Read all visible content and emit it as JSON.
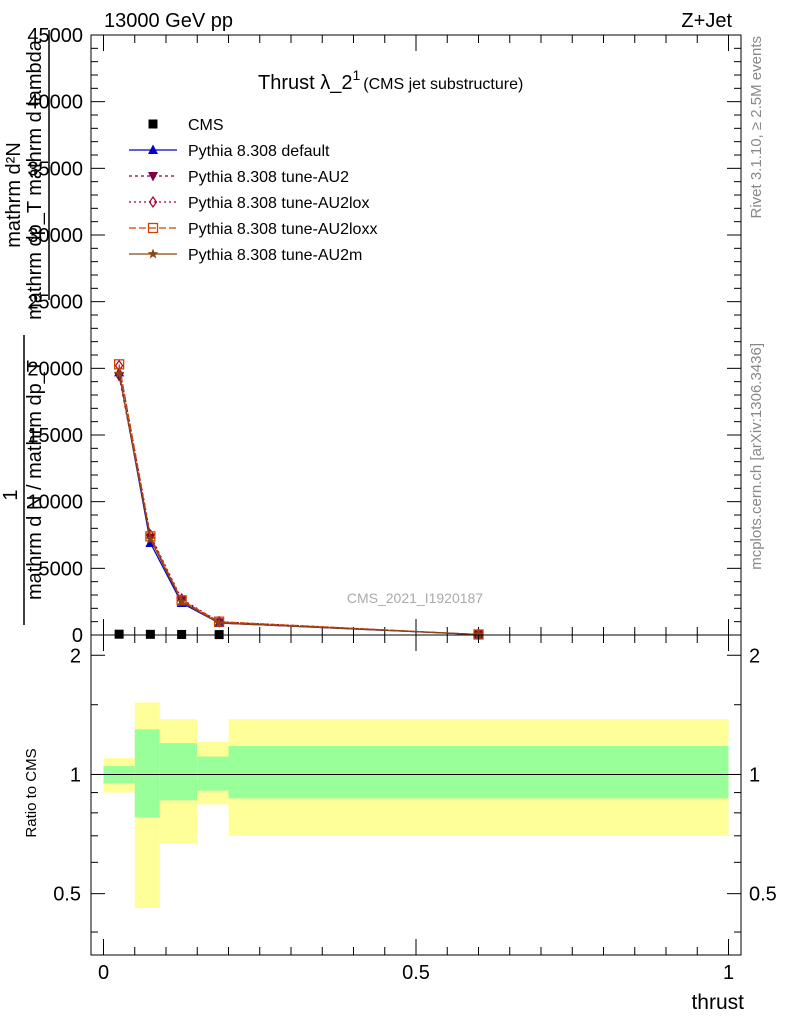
{
  "header": {
    "energy_label": "13000 GeV pp",
    "process_label": "Z+Jet"
  },
  "side_text": {
    "rivet": "Rivet 3.1.10, ≥ 2.5M events",
    "mcplots": "mcplots.cern.ch [arXiv:1306.3436]"
  },
  "watermark": "CMS_2021_I1920187",
  "title": {
    "main": "Thrust λ_2",
    "superscript": "1",
    "suffix": "(CMS jet substructure)"
  },
  "ylabel_main": {
    "numerator_lines": [
      "mathrm d²N",
      "mathrm dp_T mathrm d lambda"
    ],
    "prefix": "1",
    "denominator": "mathrm d N / mathrm dp_T"
  },
  "ylabel_ratio": "Ratio to CMS",
  "xlabel": "thrust",
  "colors": {
    "cms": "#000000",
    "default": "#0000cc",
    "au2": "#800040",
    "au2lox": "#a0002a",
    "au2loxx": "#cc4400",
    "au2m": "#8b4513",
    "band_inner": "#99ff99",
    "band_outer": "#ffff99"
  },
  "chart_data": [
    {
      "type": "line",
      "panel": "main",
      "xlim": [
        -0.02,
        1.02
      ],
      "ylim": [
        0,
        45000
      ],
      "x_ticks": [
        0,
        0.5,
        1
      ],
      "y_ticks": [
        0,
        5000,
        10000,
        15000,
        20000,
        25000,
        30000,
        35000,
        40000,
        45000
      ],
      "y_tick_labels": [
        "0",
        "5000",
        "10000",
        "15000",
        "20000",
        "25000",
        "30000",
        "35000",
        "40000",
        "45000"
      ],
      "grid": false,
      "legend_position": "top-left",
      "series": [
        {
          "name": "CMS",
          "style": "cms",
          "marker": "square",
          "x": [
            0.025,
            0.075,
            0.125,
            0.185,
            0.6
          ],
          "y": [
            60,
            50,
            40,
            30,
            5
          ]
        },
        {
          "name": "Pythia 8.308 default",
          "style": "default",
          "marker": "triangle-up",
          "dash": "",
          "x": [
            0.025,
            0.075,
            0.125,
            0.185,
            0.6
          ],
          "y": [
            19700,
            6900,
            2400,
            900,
            40
          ]
        },
        {
          "name": "Pythia 8.308 tune-AU2",
          "style": "au2",
          "marker": "triangle-down",
          "dash": "3,3",
          "x": [
            0.025,
            0.075,
            0.125,
            0.185,
            0.6
          ],
          "y": [
            19400,
            7300,
            2600,
            950,
            40
          ]
        },
        {
          "name": "Pythia 8.308 tune-AU2lox",
          "style": "au2lox",
          "marker": "diamond-open",
          "dash": "2,3",
          "x": [
            0.025,
            0.075,
            0.125,
            0.185,
            0.6
          ],
          "y": [
            20200,
            7500,
            2700,
            1000,
            40
          ]
        },
        {
          "name": "Pythia 8.308 tune-AU2loxx",
          "style": "au2loxx",
          "marker": "square-open",
          "dash": "7,3",
          "x": [
            0.025,
            0.075,
            0.125,
            0.185,
            0.6
          ],
          "y": [
            20300,
            7400,
            2600,
            1000,
            40
          ]
        },
        {
          "name": "Pythia 8.308 tune-AU2m",
          "style": "au2m",
          "marker": "star",
          "dash": "",
          "x": [
            0.025,
            0.075,
            0.125,
            0.185,
            0.6
          ],
          "y": [
            19600,
            7200,
            2500,
            900,
            40
          ]
        }
      ]
    },
    {
      "type": "area",
      "panel": "ratio",
      "xlim": [
        -0.02,
        1.02
      ],
      "ylim": [
        0.35,
        2.25
      ],
      "x_ticks": [
        0,
        0.5,
        1
      ],
      "x_tick_labels": [
        "0",
        "0.5",
        "1"
      ],
      "y_ticks": [
        0.5,
        1,
        2
      ],
      "y_tick_labels": [
        "0.5",
        "1",
        "2"
      ],
      "reference_line": 1,
      "bins": [
        {
          "x0": 0.0,
          "x1": 0.05,
          "inner": [
            0.95,
            1.05
          ],
          "outer": [
            0.9,
            1.1
          ]
        },
        {
          "x0": 0.05,
          "x1": 0.09,
          "inner": [
            0.78,
            1.3
          ],
          "outer": [
            0.46,
            1.52
          ]
        },
        {
          "x0": 0.09,
          "x1": 0.15,
          "inner": [
            0.86,
            1.2
          ],
          "outer": [
            0.67,
            1.38
          ]
        },
        {
          "x0": 0.15,
          "x1": 0.2,
          "inner": [
            0.91,
            1.11
          ],
          "outer": [
            0.84,
            1.21
          ]
        },
        {
          "x0": 0.2,
          "x1": 1.0,
          "inner": [
            0.87,
            1.18
          ],
          "outer": [
            0.7,
            1.38
          ]
        }
      ]
    }
  ]
}
